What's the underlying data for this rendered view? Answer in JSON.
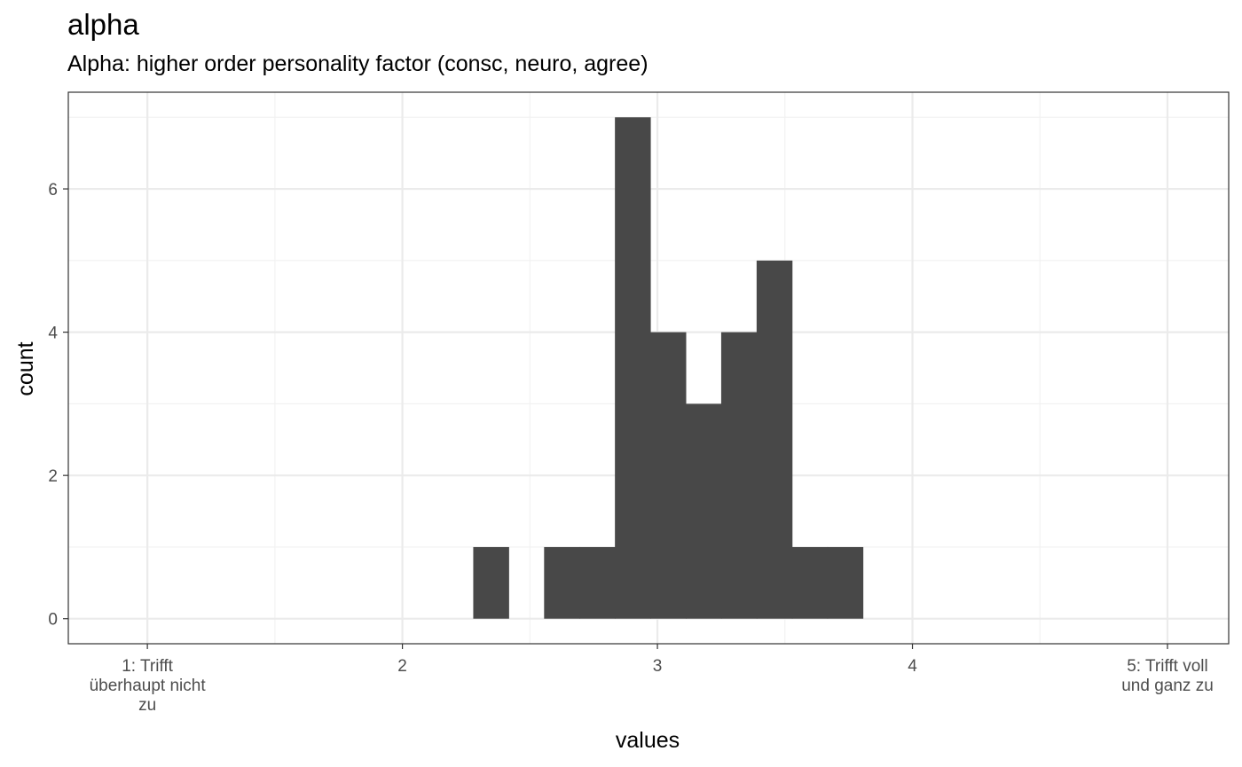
{
  "title": "alpha",
  "subtitle": "Alpha: higher order personality factor (consc, neuro, agree)",
  "chart_data": {
    "type": "bar",
    "subtype": "histogram",
    "xlabel": "values",
    "ylabel": "count",
    "xlim": [
      0.69,
      5.24
    ],
    "ylim": [
      -0.35,
      7.35
    ],
    "x_ticks": [
      {
        "value": 1,
        "label": "1: Trifft\nüberhaupt nicht\nzu"
      },
      {
        "value": 2,
        "label": "2"
      },
      {
        "value": 3,
        "label": "3"
      },
      {
        "value": 4,
        "label": "4"
      },
      {
        "value": 5,
        "label": "5: Trifft voll\nund ganz zu"
      }
    ],
    "y_ticks": [
      0,
      2,
      4,
      6
    ],
    "bins": [
      {
        "x0": 2.2778,
        "x1": 2.4167,
        "count": 1
      },
      {
        "x0": 2.4167,
        "x1": 2.5556,
        "count": 0
      },
      {
        "x0": 2.5556,
        "x1": 2.6944,
        "count": 1
      },
      {
        "x0": 2.6944,
        "x1": 2.8333,
        "count": 1
      },
      {
        "x0": 2.8333,
        "x1": 2.9722,
        "count": 7
      },
      {
        "x0": 2.9722,
        "x1": 3.1111,
        "count": 4
      },
      {
        "x0": 3.1111,
        "x1": 3.25,
        "count": 3
      },
      {
        "x0": 3.25,
        "x1": 3.3889,
        "count": 4
      },
      {
        "x0": 3.3889,
        "x1": 3.5278,
        "count": 5
      },
      {
        "x0": 3.5278,
        "x1": 3.6667,
        "count": 1
      },
      {
        "x0": 3.6667,
        "x1": 3.8056,
        "count": 1
      }
    ],
    "colors": {
      "bar": "#484848",
      "panel_border": "#333333",
      "grid_major": "#ebebeb",
      "grid_minor": "#f2f2f2",
      "tick_text": "#4d4d4d"
    },
    "grid": true,
    "legend": "none"
  }
}
